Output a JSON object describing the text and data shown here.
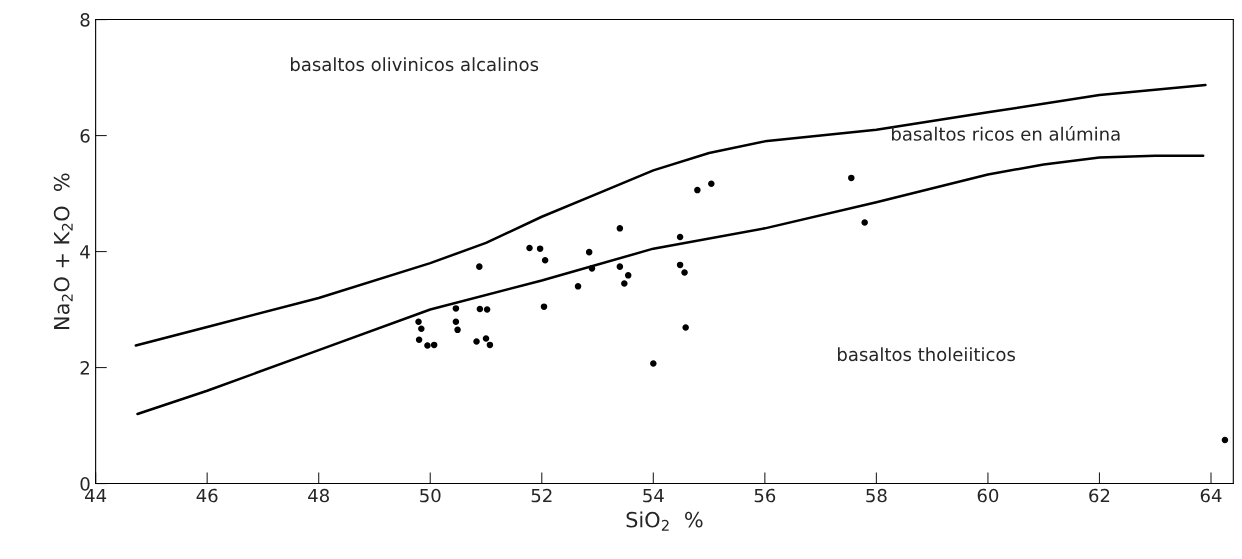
{
  "chart_data": {
    "type": "scatter",
    "xlabel": "SiO$_{2}$  %",
    "ylabel": "Na$_{2}$O + K$_{2}$O  %",
    "xlim": [
      44,
      64.4
    ],
    "ylim": [
      0,
      8
    ],
    "xticks": [
      44,
      46,
      48,
      50,
      52,
      54,
      56,
      58,
      60,
      62,
      64
    ],
    "yticks": [
      0,
      2,
      4,
      6,
      8
    ],
    "grid": false,
    "marker": "circle",
    "series": [
      {
        "color": "#000000",
        "x": [
          49.79,
          49.84,
          49.8,
          49.95,
          50.07,
          50.46,
          50.46,
          50.49,
          50.88,
          50.89,
          51.02,
          50.83,
          51.0,
          51.07,
          51.78,
          51.97,
          52.06,
          52.04,
          52.65,
          52.85,
          52.9,
          53.4,
          53.4,
          53.55,
          53.48,
          54.0,
          54.48,
          54.48,
          54.56,
          54.58,
          54.79,
          55.04,
          57.55,
          57.79,
          64.25
        ],
        "values": [
          2.79,
          2.67,
          2.48,
          2.38,
          2.39,
          3.02,
          2.79,
          2.65,
          3.74,
          3.01,
          3.0,
          2.45,
          2.5,
          2.39,
          4.06,
          4.05,
          3.85,
          3.05,
          3.4,
          3.99,
          3.71,
          4.4,
          3.74,
          3.59,
          3.45,
          2.07,
          4.25,
          3.77,
          3.64,
          2.69,
          5.06,
          5.17,
          5.27,
          4.5,
          0.75
        ]
      },
      {
        "type": "line",
        "color": "#000000",
        "marker": "none",
        "x": [
          44.72,
          46,
          48,
          50,
          51,
          52,
          53,
          54,
          55,
          56,
          58,
          60,
          62,
          63.9
        ],
        "values": [
          2.38,
          2.7,
          3.2,
          3.8,
          4.15,
          4.6,
          5.0,
          5.4,
          5.7,
          5.9,
          6.1,
          6.4,
          6.7,
          6.87
        ]
      },
      {
        "type": "line",
        "color": "#000000",
        "marker": "none",
        "x": [
          44.75,
          46,
          48,
          50,
          52,
          54,
          56,
          58,
          60,
          61,
          62,
          63,
          63.86
        ],
        "values": [
          1.2,
          1.6,
          2.3,
          3.0,
          3.5,
          4.05,
          4.4,
          4.85,
          5.33,
          5.5,
          5.62,
          5.65,
          5.65
        ]
      }
    ],
    "annotations": [
      "basaltos olivinicos alcalinos",
      "basaltos ricos en alúmina",
      "basaltos tholeiiticos"
    ]
  }
}
